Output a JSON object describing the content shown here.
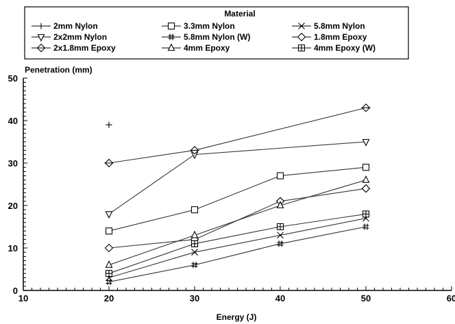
{
  "chart_data": {
    "type": "line",
    "title": "",
    "xlabel": "Energy (J)",
    "ylabel": "Penetration (mm)",
    "xlim": [
      10,
      60
    ],
    "ylim": [
      0,
      50
    ],
    "x_ticks": [
      "10",
      "20",
      "30",
      "40",
      "50",
      "60"
    ],
    "y_ticks": [
      "0",
      "10",
      "20",
      "30",
      "40",
      "50"
    ],
    "grid": false,
    "legend_title": "Material",
    "legend_position": "top",
    "series": [
      {
        "name": "2mm Nylon",
        "marker": "plus",
        "x": [
          20
        ],
        "y": [
          39
        ]
      },
      {
        "name": "3.3mm Nylon",
        "marker": "square",
        "x": [
          20,
          30,
          40,
          50
        ],
        "y": [
          14,
          19,
          27,
          29
        ]
      },
      {
        "name": "5.8mm Nylon",
        "marker": "x",
        "x": [
          20,
          30,
          40,
          50
        ],
        "y": [
          3,
          9,
          13,
          17
        ]
      },
      {
        "name": "2x2mm Nylon",
        "marker": "triangle-down",
        "x": [
          20,
          30,
          50
        ],
        "y": [
          18,
          32,
          35
        ]
      },
      {
        "name": "5.8mm Nylon (W)",
        "marker": "hash",
        "x": [
          20,
          30,
          40,
          50
        ],
        "y": [
          2,
          6,
          11,
          15
        ]
      },
      {
        "name": "1.8mm Epoxy",
        "marker": "diamond",
        "x": [
          20,
          30,
          40,
          50
        ],
        "y": [
          10,
          12,
          21,
          24
        ]
      },
      {
        "name": "2x1.8mm Epoxy",
        "marker": "diamond-cross",
        "x": [
          20,
          30,
          50
        ],
        "y": [
          30,
          33,
          43
        ]
      },
      {
        "name": "4mm Epoxy",
        "marker": "triangle-up",
        "x": [
          20,
          30,
          40,
          50
        ],
        "y": [
          6,
          13,
          20,
          26
        ]
      },
      {
        "name": "4mm Epoxy (W)",
        "marker": "square-plus",
        "x": [
          20,
          30,
          40,
          50
        ],
        "y": [
          4,
          11,
          15,
          18
        ]
      }
    ],
    "legend_layout": [
      [
        "2mm Nylon",
        "3.3mm Nylon",
        "5.8mm Nylon"
      ],
      [
        "2x2mm Nylon",
        "5.8mm Nylon (W)",
        "1.8mm Epoxy"
      ],
      [
        "2x1.8mm Epoxy",
        "4mm Epoxy",
        "4mm Epoxy (W)"
      ]
    ]
  }
}
